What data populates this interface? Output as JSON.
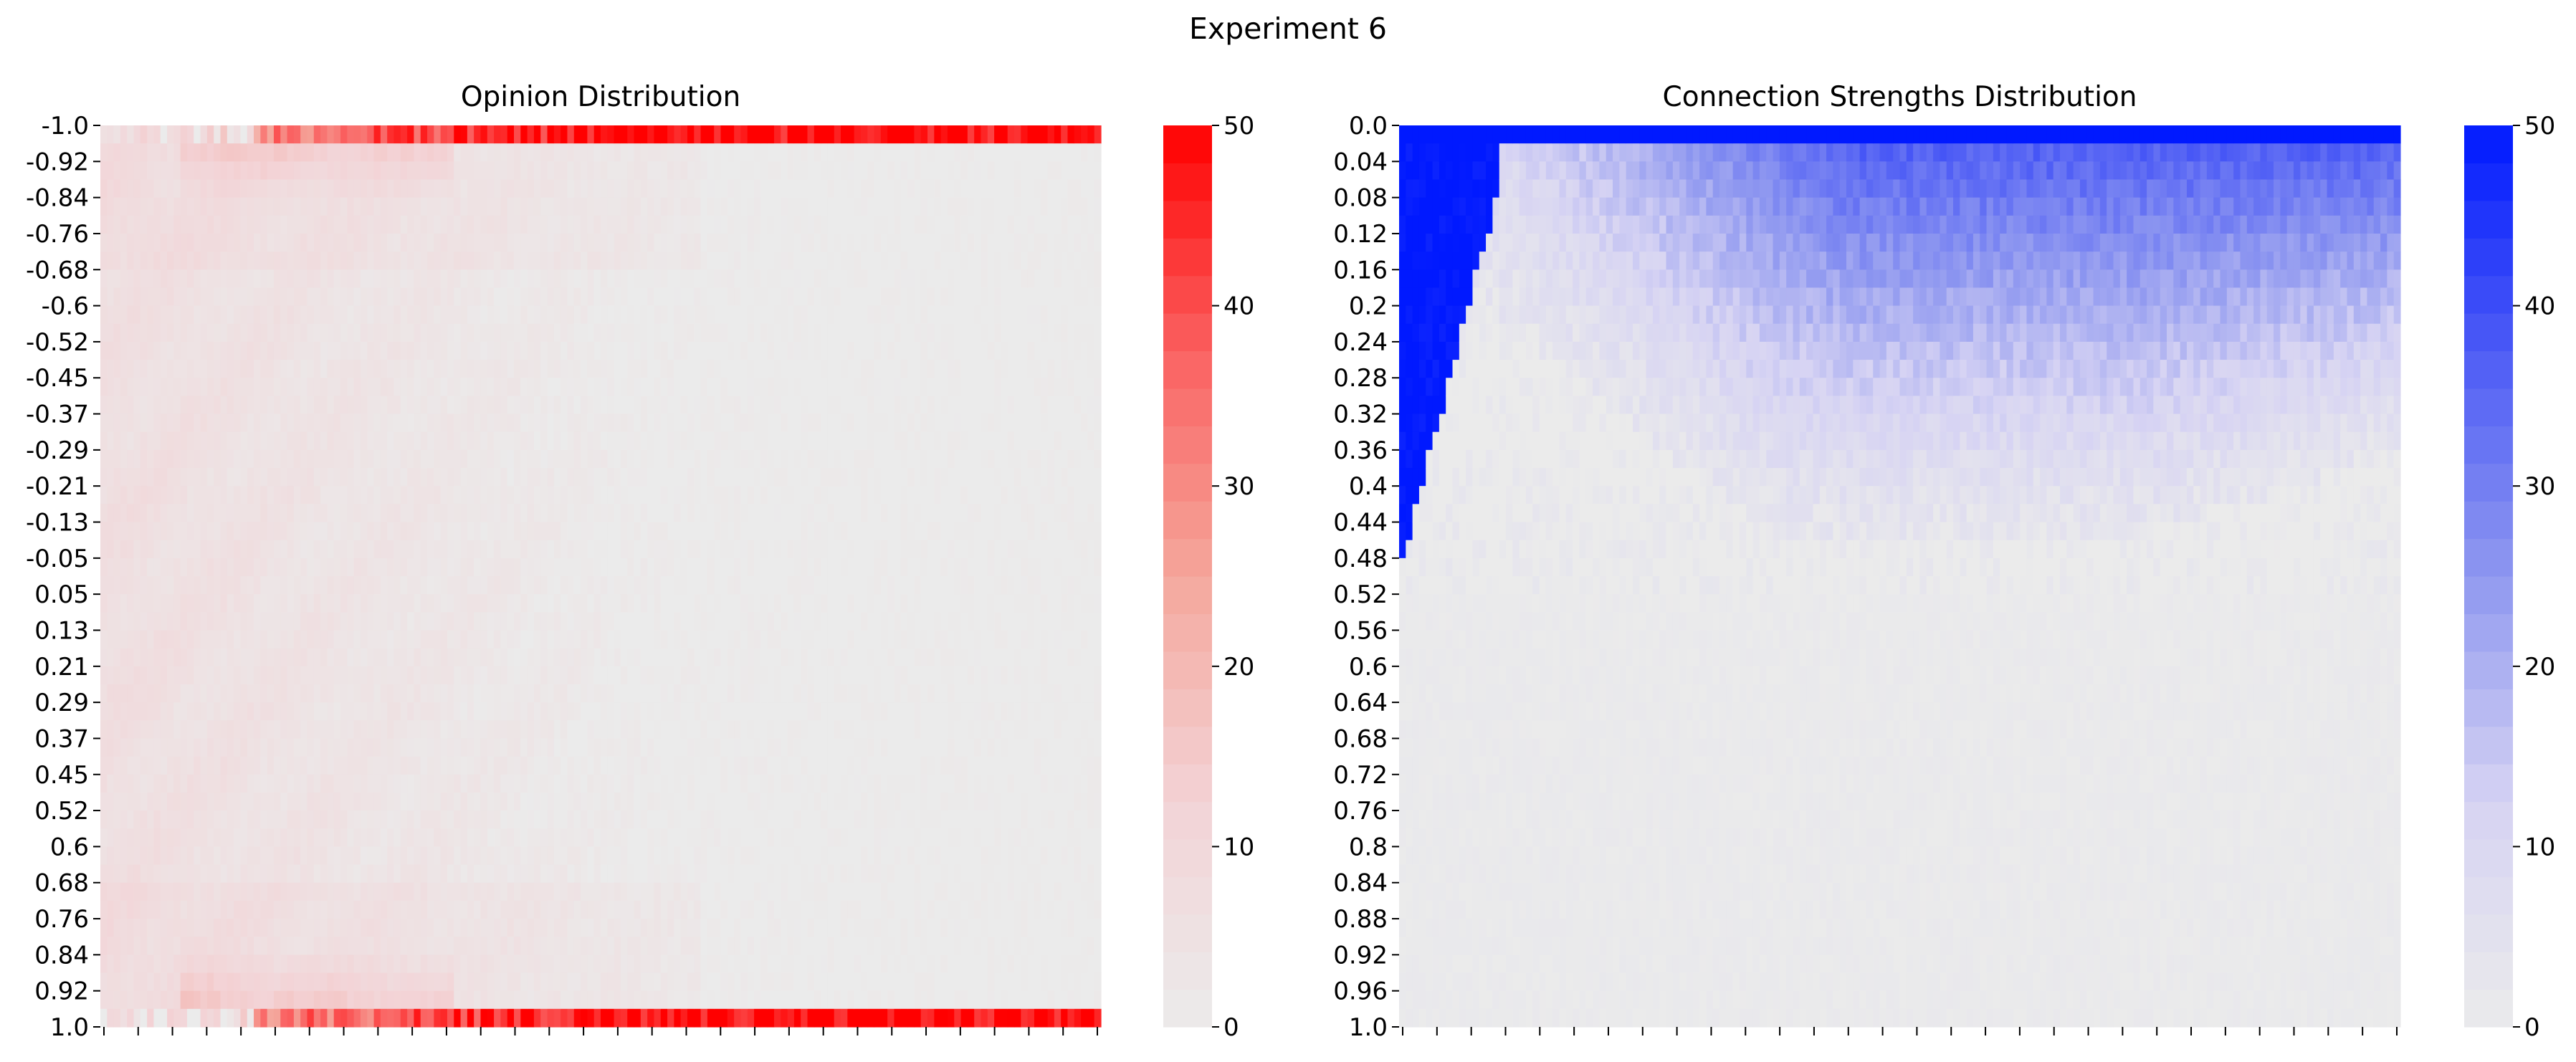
{
  "figure_title": "Experiment 6",
  "colors": {
    "background_cell": "#ebebeb",
    "opinion_scale": [
      "#ebebeb",
      "#f3d3d6",
      "#f4a79c",
      "#fa6161",
      "#ff0000"
    ],
    "connection_scale": [
      "#ebebeb",
      "#d6d3f3",
      "#8f98f0",
      "#4d5cf5",
      "#0019ff"
    ]
  },
  "chart_data": [
    {
      "type": "heatmap",
      "title": "Opinion Distribution",
      "xlabel": "",
      "ylabel": "",
      "y_tick_labels": [
        "-1.0",
        "-0.92",
        "-0.84",
        "-0.76",
        "-0.68",
        "-0.6",
        "-0.52",
        "-0.45",
        "-0.37",
        "-0.29",
        "-0.21",
        "-0.13",
        "-0.05",
        "0.05",
        "0.13",
        "0.21",
        "0.29",
        "0.37",
        "0.45",
        "0.52",
        "0.6",
        "0.68",
        "0.76",
        "0.84",
        "0.92",
        "1.0"
      ],
      "x_tick_count": 30,
      "x_tick_labels_visible": false,
      "colorbar": {
        "min": 0,
        "max": 50,
        "ticks": [
          0,
          10,
          20,
          30,
          40,
          50
        ]
      },
      "pattern": "Opinions start spread across [-1, 1] with counts about 2-8; over time they drift to the two extremes, reaching about 40-50 in the rows at -1.0 and 1.0; the interior becomes near 0."
    },
    {
      "type": "heatmap",
      "title": "Connection Strengths Distribution",
      "xlabel": "",
      "ylabel": "",
      "y_tick_labels": [
        "0.0",
        "0.04",
        "0.08",
        "0.12",
        "0.16",
        "0.2",
        "0.24",
        "0.28",
        "0.32",
        "0.36",
        "0.4",
        "0.44",
        "0.48",
        "0.52",
        "0.56",
        "0.6",
        "0.64",
        "0.68",
        "0.72",
        "0.76",
        "0.8",
        "0.84",
        "0.88",
        "0.92",
        "0.96",
        "1.0"
      ],
      "x_tick_count": 30,
      "x_tick_labels_visible": false,
      "colorbar": {
        "min": 0,
        "max": 50,
        "ticks": [
          0,
          10,
          20,
          30,
          40,
          50
        ]
      },
      "pattern": "Initially strengths fill 0.0-0.48 densely (about 50); the dense band collapses toward 0.0 within the first few steps, then a diffuse band spreads back down to about 0.3-0.45; 0.0 stays saturated at about 50; values above 0.52 are near 0."
    }
  ]
}
